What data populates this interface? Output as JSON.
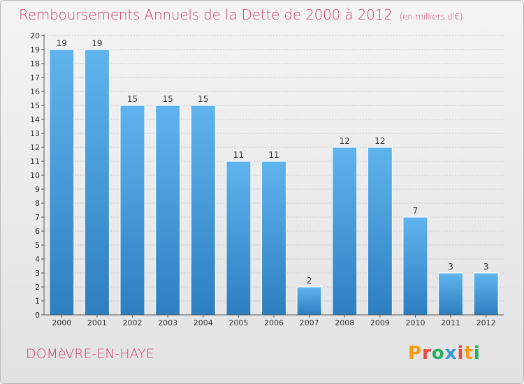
{
  "header": {
    "title": "Remboursements Annuels de la Dette de 2000 à 2012",
    "unit": "(en milliers d'€)"
  },
  "footer": {
    "commune": "DOMèVRE-EN-HAYE",
    "brand": "Proxiti",
    "brand_colors": [
      "#f39c12",
      "#e74c3c",
      "#27ae60",
      "#3498db",
      "#e74c3c",
      "#f39c12",
      "#27ae60"
    ]
  },
  "colors": {
    "title": "#cf3f6c",
    "bar_top": "#5fb4ee",
    "bar_bottom": "#2d7fc0",
    "axis": "#555555",
    "grid": "#c8c8c8"
  },
  "chart_data": {
    "type": "bar",
    "title": "Remboursements Annuels de la Dette de 2000 à 2012",
    "unit": "(en milliers d'€)",
    "categories": [
      "2000",
      "2001",
      "2002",
      "2003",
      "2004",
      "2005",
      "2006",
      "2007",
      "2008",
      "2009",
      "2010",
      "2011",
      "2012"
    ],
    "values": [
      19,
      19,
      15,
      15,
      15,
      11,
      11,
      2,
      12,
      12,
      7,
      3,
      3
    ],
    "ylim": [
      0,
      20
    ],
    "yticks": [
      0,
      1,
      2,
      3,
      4,
      5,
      6,
      7,
      8,
      9,
      10,
      11,
      12,
      13,
      14,
      15,
      16,
      17,
      18,
      19,
      20
    ],
    "grid": true,
    "data_labels": true
  }
}
